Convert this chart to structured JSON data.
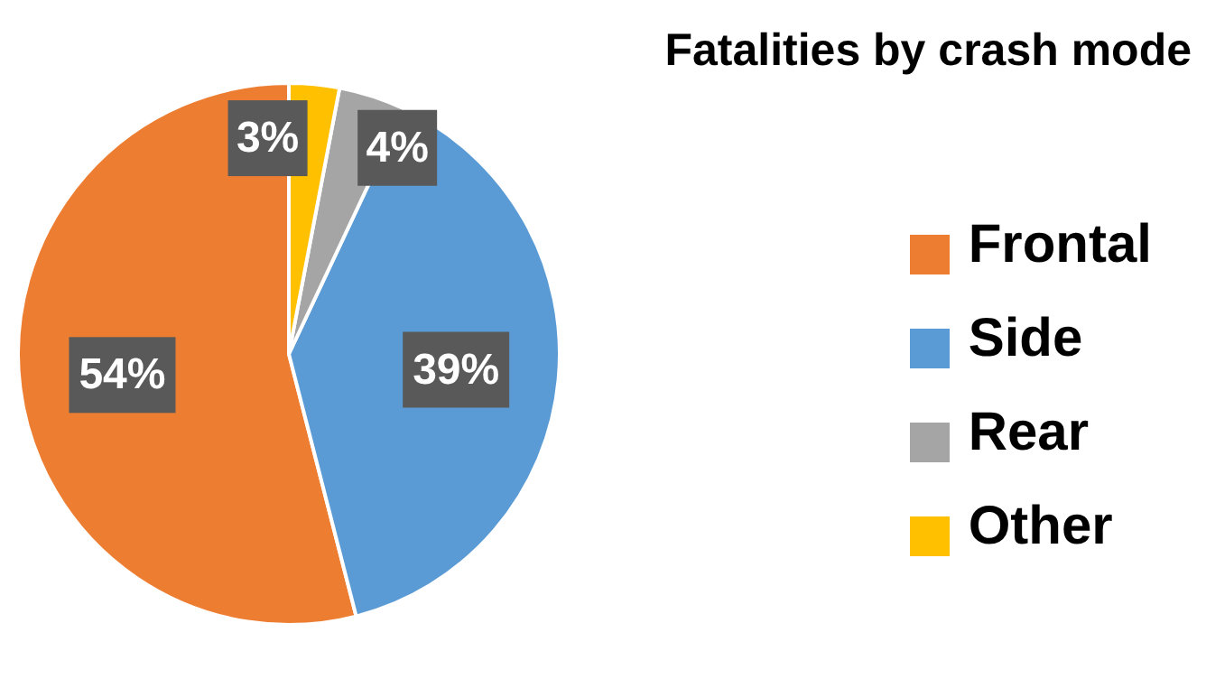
{
  "chart_data": {
    "type": "pie",
    "title": "Fatalities by crash mode",
    "categories": [
      "Frontal",
      "Side",
      "Rear",
      "Other"
    ],
    "values": [
      54,
      39,
      4,
      3
    ],
    "value_labels": [
      "54%",
      "39%",
      "4%",
      "3%"
    ],
    "colors": [
      "#ed7d31",
      "#5b9bd5",
      "#a5a5a5",
      "#ffc000"
    ],
    "legend": "right"
  }
}
